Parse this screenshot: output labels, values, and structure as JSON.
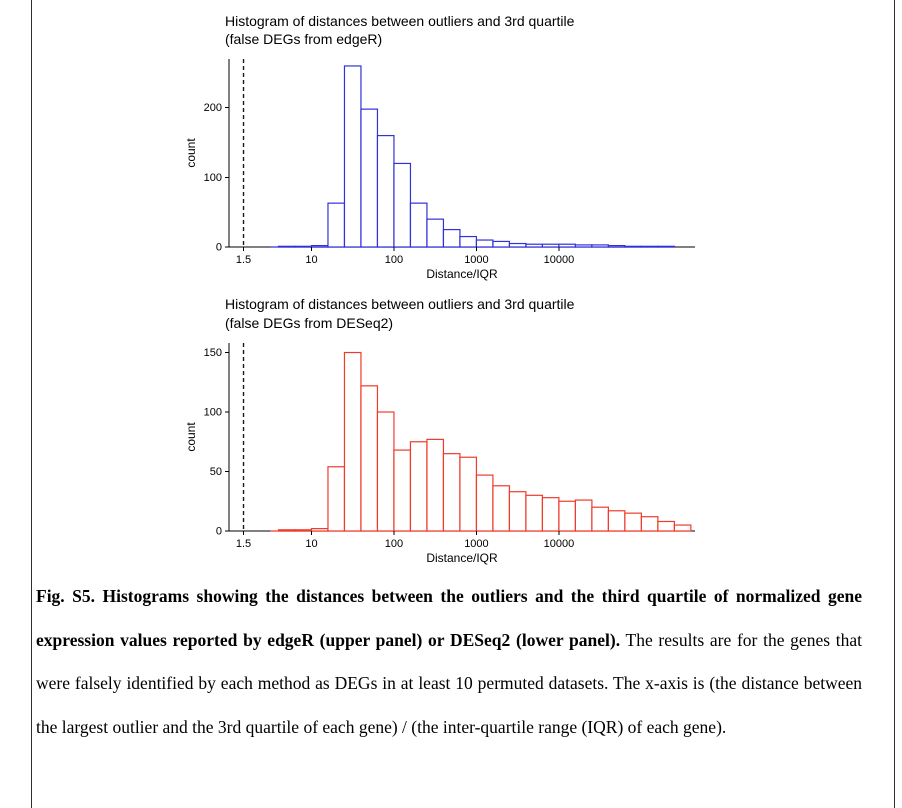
{
  "caption": {
    "bold": "Fig. S5. Histograms showing the distances between the outliers and the third quartile of normalized gene expression values reported by edgeR (upper panel) or DESeq2 (lower panel).",
    "regular": "The results are for the genes that were falsely identified by each method as DEGs in at least 10 permuted datasets. The x-axis is (the distance between the largest outlier and the 3rd quartile of each gene) / (the inter-quartile range (IQR) of each gene)."
  },
  "chart_data": [
    {
      "type": "bar",
      "title": "Histogram of distances between outliers and 3rd quartile",
      "subtitle": "(false DEGs from edgeR)",
      "xlabel": "Distance/IQR",
      "ylabel": "count",
      "x_scale": "log10",
      "x_domain_log10": [
        0.0,
        5.65
      ],
      "x_ticks": [
        1.5,
        10,
        100,
        1000,
        10000
      ],
      "y_ticks": [
        0,
        100,
        200
      ],
      "ylim": [
        0,
        270
      ],
      "grid": "off",
      "legend": "none",
      "bar_color": "#3232d8",
      "vline": {
        "x": 1.5,
        "color": "#1a1a1a",
        "style": "dashed"
      },
      "bins_log10_start": 0.6,
      "bin_width_log10": 0.2,
      "baseline_log10": [
        0.5,
        5.4
      ],
      "counts": [
        1,
        1,
        2,
        63,
        260,
        198,
        160,
        120,
        63,
        40,
        25,
        15,
        10,
        8,
        5,
        4,
        4,
        4,
        3,
        3,
        2,
        1,
        1,
        1
      ]
    },
    {
      "type": "bar",
      "title": "Histogram of distances between outliers and 3rd quartile",
      "subtitle": "(false DEGs from DESeq2)",
      "xlabel": "Distance/IQR",
      "ylabel": "count",
      "x_scale": "log10",
      "x_domain_log10": [
        0.0,
        5.65
      ],
      "x_ticks": [
        1.5,
        10,
        100,
        1000,
        10000
      ],
      "y_ticks": [
        0,
        50,
        100,
        150
      ],
      "ylim": [
        0,
        158
      ],
      "grid": "off",
      "legend": "none",
      "bar_color": "#ef3b2c",
      "vline": {
        "x": 1.5,
        "color": "#1a1a1a",
        "style": "dashed"
      },
      "bins_log10_start": 0.6,
      "bin_width_log10": 0.2,
      "baseline_log10": [
        0.5,
        5.6
      ],
      "counts": [
        1,
        1,
        2,
        54,
        150,
        122,
        100,
        68,
        75,
        77,
        65,
        62,
        47,
        38,
        33,
        30,
        28,
        25,
        26,
        20,
        17,
        15,
        12,
        8,
        5
      ]
    }
  ]
}
